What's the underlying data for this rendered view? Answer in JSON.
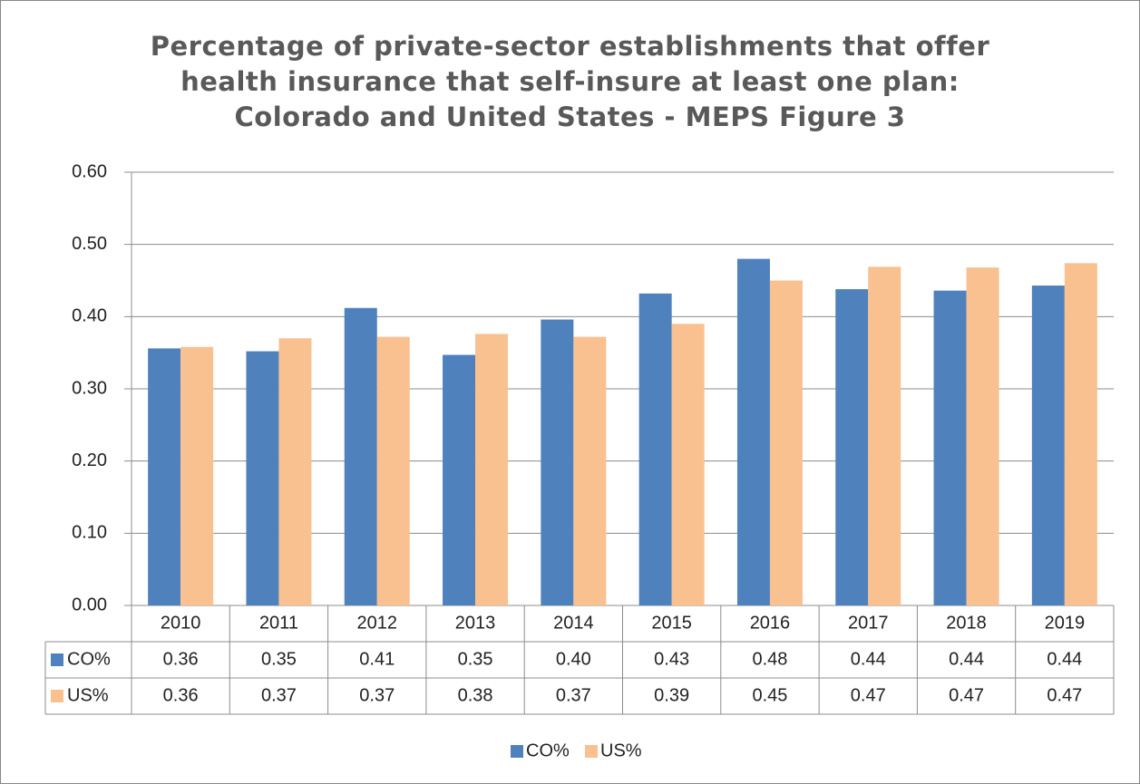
{
  "chart_data": {
    "type": "bar",
    "title": "Percentage of private-sector establishments that offer\nhealth insurance that self-insure at least one plan:\nColorado and United States - MEPS Figure 3",
    "categories": [
      "2010",
      "2011",
      "2012",
      "2013",
      "2014",
      "2015",
      "2016",
      "2017",
      "2018",
      "2019"
    ],
    "series": [
      {
        "name": "CO%",
        "color": "#4f81bd",
        "values": [
          0.356,
          0.352,
          0.412,
          0.347,
          0.396,
          0.432,
          0.48,
          0.438,
          0.436,
          0.443
        ],
        "value_labels": [
          "0.36",
          "0.35",
          "0.41",
          "0.35",
          "0.40",
          "0.43",
          "0.48",
          "0.44",
          "0.44",
          "0.44"
        ]
      },
      {
        "name": "US%",
        "color": "#f9c090",
        "values": [
          0.358,
          0.37,
          0.372,
          0.376,
          0.372,
          0.39,
          0.45,
          0.469,
          0.468,
          0.474
        ],
        "value_labels": [
          "0.36",
          "0.37",
          "0.37",
          "0.38",
          "0.37",
          "0.39",
          "0.45",
          "0.47",
          "0.47",
          "0.47"
        ]
      }
    ],
    "ylim": [
      0,
      0.6
    ],
    "yticks": [
      {
        "value": 0,
        "label": "0.00"
      },
      {
        "value": 0.1,
        "label": "0.10"
      },
      {
        "value": 0.2,
        "label": "0.20"
      },
      {
        "value": 0.3,
        "label": "0.30"
      },
      {
        "value": 0.4,
        "label": "0.40"
      },
      {
        "value": 0.5,
        "label": "0.50"
      },
      {
        "value": 0.6,
        "label": "0.60"
      }
    ],
    "grid": true,
    "legend": "bottom"
  }
}
